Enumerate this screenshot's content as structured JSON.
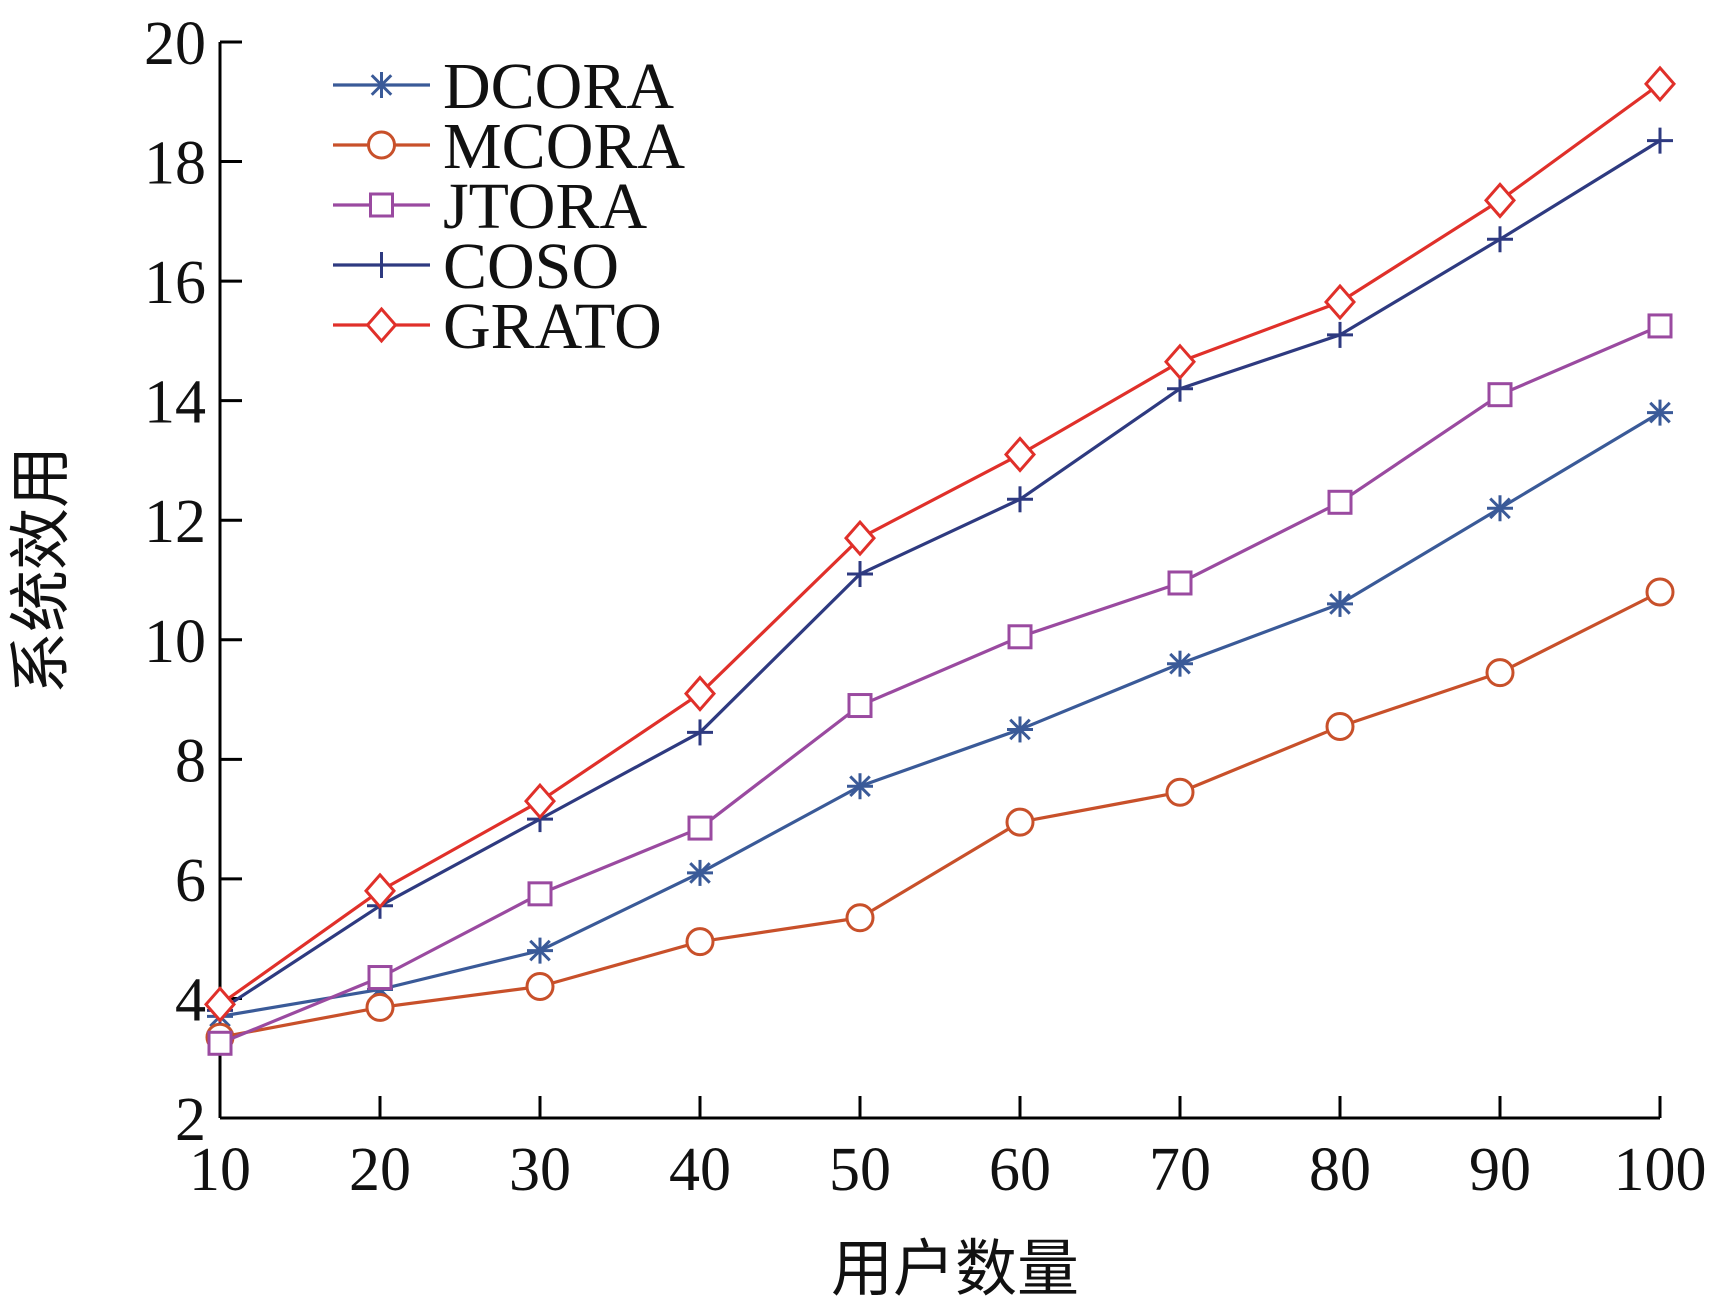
{
  "chart_data": {
    "type": "line",
    "title": "",
    "xlabel": "用户数量",
    "ylabel": "系统效用",
    "x": [
      10,
      20,
      30,
      40,
      50,
      60,
      70,
      80,
      90,
      100
    ],
    "xticks": [
      "10",
      "20",
      "30",
      "40",
      "50",
      "60",
      "70",
      "80",
      "90",
      "100"
    ],
    "yticks": [
      "2",
      "4",
      "6",
      "8",
      "10",
      "12",
      "14",
      "16",
      "18",
      "20"
    ],
    "xlim": [
      10,
      100
    ],
    "ylim": [
      2,
      20
    ],
    "grid": false,
    "legend_position": "top-left",
    "series": [
      {
        "name": "DCORA",
        "color": "#3a5a98",
        "marker": "asterisk",
        "values": [
          3.7,
          4.15,
          4.8,
          6.1,
          7.55,
          8.5,
          9.6,
          10.6,
          12.2,
          13.8
        ]
      },
      {
        "name": "MCORA",
        "color": "#c8502a",
        "marker": "circle",
        "values": [
          3.35,
          3.85,
          4.2,
          4.95,
          5.35,
          6.95,
          7.45,
          8.55,
          9.45,
          10.8
        ]
      },
      {
        "name": "JTORA",
        "color": "#9a4aa0",
        "marker": "square",
        "values": [
          3.25,
          4.35,
          5.75,
          6.85,
          8.9,
          10.05,
          10.95,
          12.3,
          14.1,
          15.25
        ]
      },
      {
        "name": "COSO",
        "color": "#2e3a80",
        "marker": "plus",
        "values": [
          3.8,
          5.55,
          7.0,
          8.45,
          11.1,
          12.35,
          14.2,
          15.1,
          16.7,
          18.35
        ]
      },
      {
        "name": "GRATO",
        "color": "#e0302a",
        "marker": "diamond",
        "values": [
          3.9,
          5.8,
          7.3,
          9.1,
          11.7,
          13.1,
          14.65,
          15.65,
          17.35,
          19.3
        ]
      }
    ]
  }
}
